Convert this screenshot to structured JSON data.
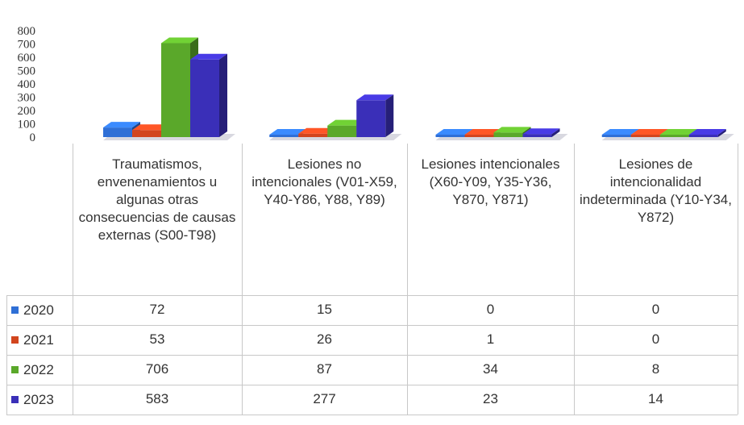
{
  "chart_data": {
    "type": "bar",
    "categories": [
      "Traumatismos, envenenamientos u algunas otras consecuencias de causas externas (S00-T98)",
      "Lesiones no intencionales (V01-X59, Y40-Y86, Y88, Y89)",
      "Lesiones intencionales (X60-Y09, Y35-Y36, Y870, Y871)",
      "Lesiones de intencionalidad indeterminada (Y10-Y34, Y872)"
    ],
    "series": [
      {
        "name": "2020",
        "color": "#2f6fd6",
        "values": [
          72,
          15,
          0,
          0
        ]
      },
      {
        "name": "2021",
        "color": "#d2451e",
        "values": [
          53,
          26,
          1,
          0
        ]
      },
      {
        "name": "2022",
        "color": "#5aa82a",
        "values": [
          706,
          87,
          34,
          8
        ]
      },
      {
        "name": "2023",
        "color": "#3a2fb8",
        "values": [
          583,
          277,
          23,
          14
        ]
      }
    ],
    "ylim": [
      0,
      800
    ],
    "yticks": [
      "0",
      "100",
      "200",
      "300",
      "400",
      "500",
      "600",
      "700",
      "800"
    ],
    "legend": "data-table-rows"
  },
  "table": {
    "rows": [
      {
        "year": "2020",
        "cells": [
          "72",
          "15",
          "0",
          "0"
        ]
      },
      {
        "year": "2021",
        "cells": [
          "53",
          "26",
          "1",
          "0"
        ]
      },
      {
        "year": "2022",
        "cells": [
          "706",
          "87",
          "34",
          "8"
        ]
      },
      {
        "year": "2023",
        "cells": [
          "583",
          "277",
          "23",
          "14"
        ]
      }
    ]
  }
}
